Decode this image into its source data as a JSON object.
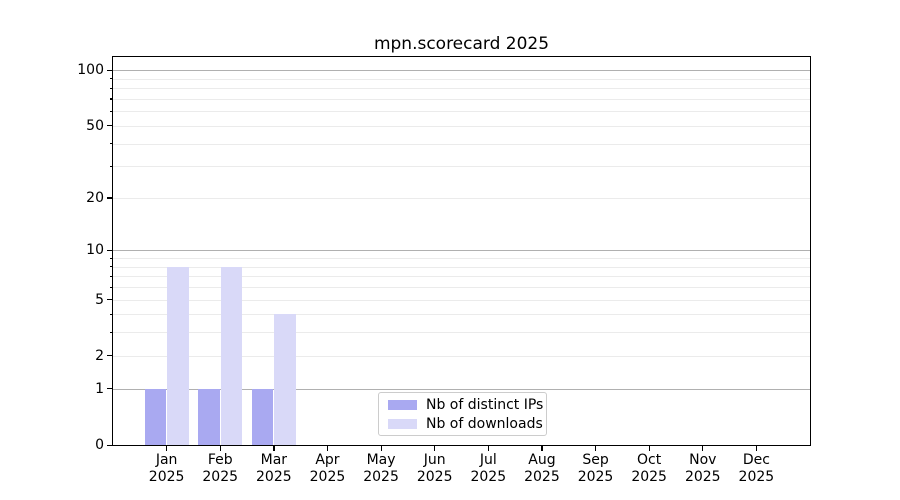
{
  "chart_data": {
    "type": "bar",
    "title": "mpn.scorecard 2025",
    "categories": [
      "Jan",
      "Feb",
      "Mar",
      "Apr",
      "May",
      "Jun",
      "Jul",
      "Aug",
      "Sep",
      "Oct",
      "Nov",
      "Dec"
    ],
    "category_year": "2025",
    "series": [
      {
        "name": "Nb of distinct IPs",
        "color": "#a9a9f1",
        "values": [
          1,
          1,
          1,
          0,
          0,
          0,
          0,
          0,
          0,
          0,
          0,
          0
        ]
      },
      {
        "name": "Nb of downloads",
        "color": "#d9d9f8",
        "values": [
          8,
          8,
          4,
          0,
          0,
          0,
          0,
          0,
          0,
          0,
          0,
          0
        ]
      }
    ],
    "yscale": "log1p",
    "ylim": [
      0,
      118
    ],
    "yticks": [
      0,
      1,
      2,
      5,
      10,
      20,
      50,
      100
    ],
    "yticks_minor": [
      3,
      4,
      6,
      7,
      8,
      9,
      30,
      40,
      60,
      70,
      80,
      90
    ],
    "ygrid_major": [
      1,
      10,
      100
    ],
    "grid": "horizontal-only",
    "legend_position": "inside-bottom-center",
    "background_color": "#ffffff",
    "text_color": "#000000"
  }
}
